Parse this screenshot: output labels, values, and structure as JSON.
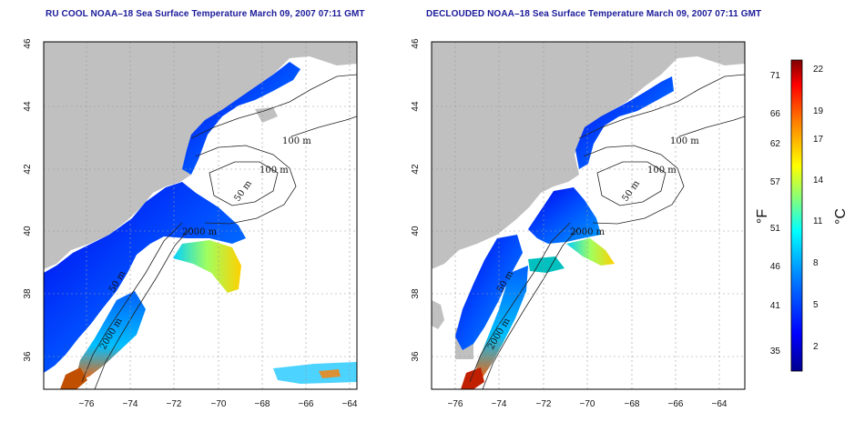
{
  "left_panel": {
    "title": "RU COOL NOAA–18 Sea Surface Temperature March 09, 2007 07:11 GMT",
    "x_ticks": [
      "−76",
      "−74",
      "−72",
      "−70",
      "−68",
      "−66",
      "−64"
    ],
    "y_ticks": [
      "46",
      "44",
      "42",
      "40",
      "38",
      "36"
    ],
    "contour_labels": [
      "100 m",
      "100 m",
      "50 m",
      "2000 m",
      "50 m",
      "2000 m"
    ]
  },
  "right_panel": {
    "title": "DECLOUDED NOAA–18 Sea Surface Temperature March 09, 2007 07:11 GMT",
    "x_ticks": [
      "−76",
      "−74",
      "−72",
      "−70",
      "−68",
      "−66",
      "−64"
    ],
    "y_ticks": [
      "46",
      "44",
      "42",
      "40",
      "38",
      "36"
    ],
    "contour_labels": [
      "100 m",
      "100 m",
      "50 m",
      "2000 m",
      "50 m",
      "2000 m"
    ]
  },
  "colorbar": {
    "fahrenheit_label": "°F",
    "celsius_label": "°C",
    "fahrenheit_ticks": [
      "71",
      "66",
      "62",
      "57",
      "51",
      "46",
      "41",
      "35"
    ],
    "celsius_ticks": [
      "22",
      "19",
      "17",
      "14",
      "11",
      "8",
      "5",
      "2"
    ],
    "colors": [
      "#00008f",
      "#0000ff",
      "#0080ff",
      "#00ffff",
      "#80ff80",
      "#ffff00",
      "#ff8000",
      "#ff0000",
      "#800000"
    ]
  },
  "colors": {
    "land": "#c0c0c0",
    "title": "#1a1a9a"
  }
}
